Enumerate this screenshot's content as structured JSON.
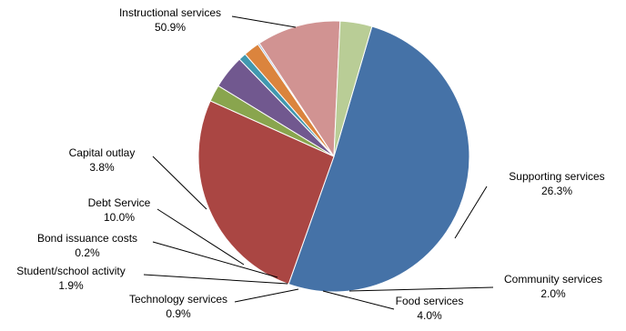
{
  "chart_data": {
    "type": "pie",
    "title": "",
    "start_angle_deg": 73.7,
    "direction": "clockwise",
    "legend": "none",
    "slices": [
      {
        "name": "Instructional services",
        "label": "Instructional services",
        "value_label": "50.9%",
        "value": 50.9,
        "color": "#4572A7"
      },
      {
        "name": "Supporting services",
        "label": "Supporting services",
        "value_label": "26.3%",
        "value": 26.3,
        "color": "#AA4643"
      },
      {
        "name": "Community services",
        "label": "Community services",
        "value_label": "2.0%",
        "value": 2.0,
        "color": "#89A54E"
      },
      {
        "name": "Food services",
        "label": "Food services",
        "value_label": "4.0%",
        "value": 4.0,
        "color": "#71588F"
      },
      {
        "name": "Technology services",
        "label": "Technology services",
        "value_label": "0.9%",
        "value": 0.9,
        "color": "#4198AF"
      },
      {
        "name": "Student/school activity",
        "label": "Student/school activity",
        "value_label": "1.9%",
        "value": 1.9,
        "color": "#DB843D"
      },
      {
        "name": "Bond issuance costs",
        "label": "Bond issuance costs",
        "value_label": "0.2%",
        "value": 0.2,
        "color": "#93A9CF"
      },
      {
        "name": "Debt Service",
        "label": "Debt Service",
        "value_label": "10.0%",
        "value": 10.0,
        "color": "#D19392"
      },
      {
        "name": "Capital outlay",
        "label": "Capital outlay",
        "value_label": "3.8%",
        "value": 3.8,
        "color": "#B9CD96"
      }
    ]
  }
}
